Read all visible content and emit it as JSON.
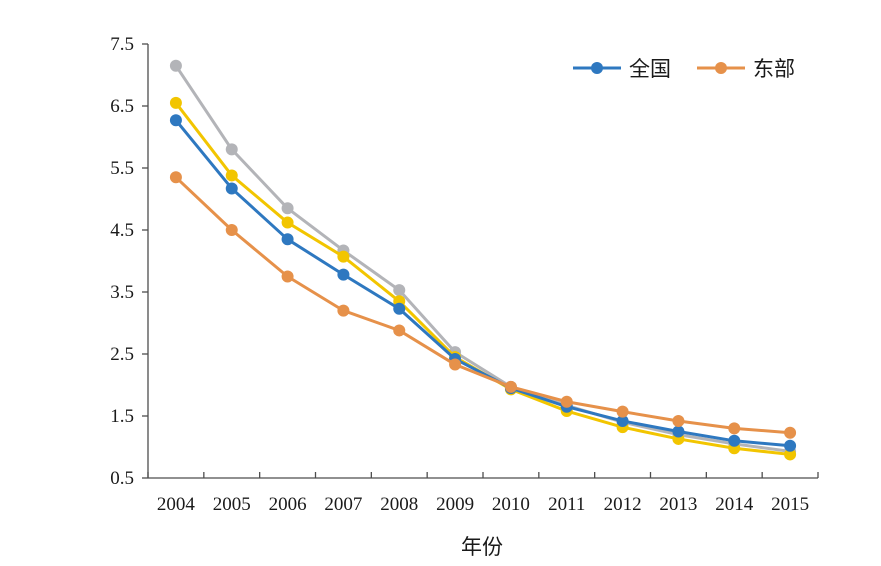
{
  "chart_data": {
    "type": "line",
    "title": "",
    "xlabel": "年份",
    "ylabel": "",
    "categories": [
      "2004",
      "2005",
      "2006",
      "2007",
      "2008",
      "2009",
      "2010",
      "2011",
      "2012",
      "2013",
      "2014",
      "2015"
    ],
    "ylim": [
      0.5,
      7.5
    ],
    "yticks": [
      0.5,
      1.5,
      2.5,
      3.5,
      4.5,
      5.5,
      6.5,
      7.5
    ],
    "ytick_labels": [
      "0.5",
      "1.5",
      "2.5",
      "3.5",
      "4.5",
      "5.5",
      "6.5",
      "7.5"
    ],
    "grid": false,
    "legend_position": "top-right",
    "series": [
      {
        "name": "",
        "color": "#b3b4b8",
        "values": [
          7.15,
          5.8,
          4.85,
          4.17,
          3.53,
          2.53,
          1.97,
          1.67,
          1.4,
          1.2,
          1.05,
          0.93
        ]
      },
      {
        "name": "",
        "color": "#f2c500",
        "values": [
          6.55,
          5.38,
          4.62,
          4.07,
          3.35,
          2.45,
          1.93,
          1.58,
          1.32,
          1.13,
          0.98,
          0.88
        ]
      },
      {
        "name": "全国",
        "color": "#2e78c0",
        "values": [
          6.27,
          5.17,
          4.35,
          3.78,
          3.23,
          2.42,
          1.95,
          1.65,
          1.42,
          1.25,
          1.1,
          1.02
        ]
      },
      {
        "name": "东部",
        "color": "#e6914a",
        "values": [
          5.35,
          4.5,
          3.75,
          3.2,
          2.88,
          2.33,
          1.97,
          1.73,
          1.57,
          1.42,
          1.3,
          1.23
        ]
      }
    ],
    "legend": [
      {
        "label": "全国",
        "color": "#2e78c0"
      },
      {
        "label": "东部",
        "color": "#e6914a"
      }
    ]
  }
}
